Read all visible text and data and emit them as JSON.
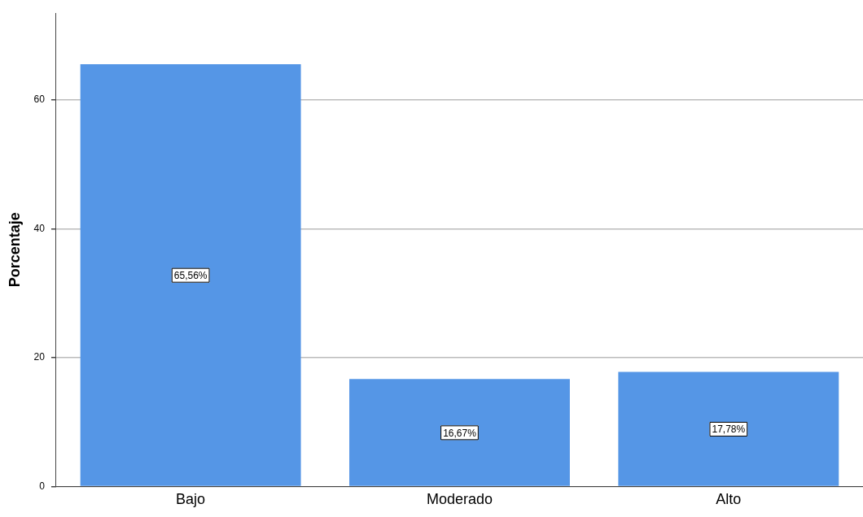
{
  "chart_data": {
    "type": "bar",
    "ylabel": "Porcentaje",
    "categories": [
      "Bajo",
      "Moderado",
      "Alto"
    ],
    "values": [
      65.56,
      16.67,
      17.78
    ],
    "color": "#5596e6",
    "value_labels": [
      "65,56%",
      "16,67%",
      "17,78%"
    ],
    "ylim": [
      0,
      73.5
    ],
    "yticks": [
      0,
      20,
      40,
      60
    ],
    "grid": "y",
    "legend": false
  }
}
